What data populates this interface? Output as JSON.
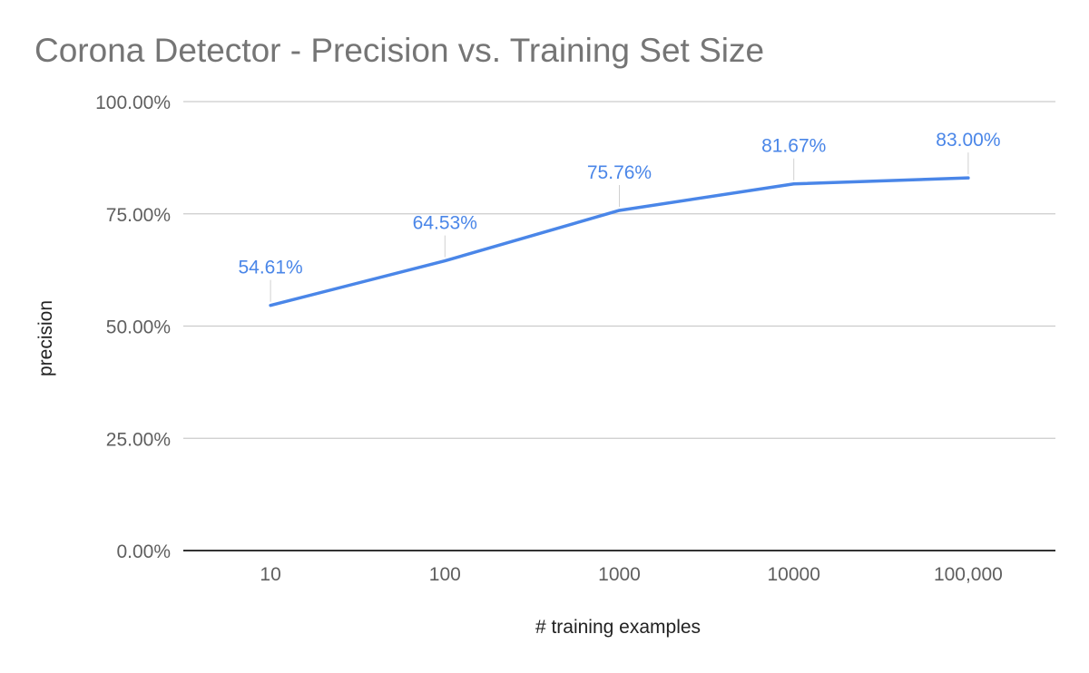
{
  "chart_data": {
    "type": "line",
    "title": "Corona Detector - Precision vs. Training Set Size",
    "xlabel": "# training examples",
    "ylabel": "precision",
    "categories": [
      "10",
      "100",
      "1000",
      "10000",
      "100,000"
    ],
    "series": [
      {
        "values": [
          54.61,
          64.53,
          75.76,
          81.67,
          83.0
        ],
        "labels": [
          "54.61%",
          "64.53%",
          "75.76%",
          "81.67%",
          "83.00%"
        ],
        "color": "#4a86e8"
      }
    ],
    "ylim": [
      0,
      100
    ],
    "yticks": [
      0,
      25,
      50,
      75,
      100
    ],
    "ytick_labels": [
      "0.00%",
      "25.00%",
      "50.00%",
      "75.00%",
      "100.00%"
    ],
    "grid": true,
    "legend": "none"
  }
}
